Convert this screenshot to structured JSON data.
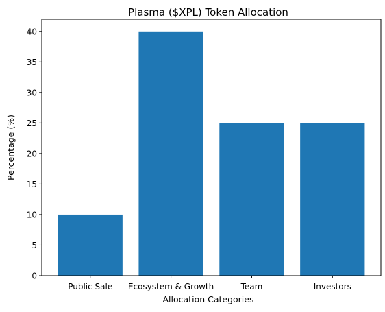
{
  "chart_data": {
    "type": "bar",
    "title": "Plasma ($XPL) Token Allocation",
    "xlabel": "Allocation Categories",
    "ylabel": "Percentage (%)",
    "categories": [
      "Public Sale",
      "Ecosystem & Growth",
      "Team",
      "Investors"
    ],
    "values": [
      10,
      40,
      25,
      25
    ],
    "ylim": [
      0,
      42
    ],
    "yticks": [
      0,
      5,
      10,
      15,
      20,
      25,
      30,
      35,
      40
    ],
    "bar_color": "#1f77b4",
    "grid": false,
    "legend": "none"
  }
}
